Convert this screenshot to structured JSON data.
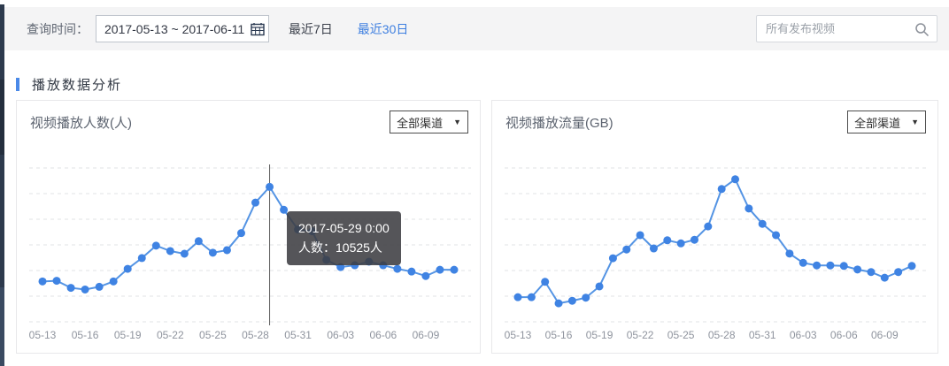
{
  "topbar": {
    "query_label": "查询时间：",
    "date_range": "2017-05-13 ~ 2017-06-11",
    "last7_label": "最近7日",
    "last30_label": "最近30日",
    "search_placeholder": "所有发布视频"
  },
  "section": {
    "title": "播放数据分析"
  },
  "colors": {
    "accent_blue": "#4a89e8",
    "link_blue": "#3e7fe0",
    "line_stroke": "#5494e4",
    "dot_fill": "#3f83e3",
    "grid_line": "#e1e3e6",
    "crosshair": "#5d5d5d",
    "tick_text": "#8f949e",
    "sidebar_dark": "#2d3a4d",
    "topbar_bg": "#f4f4f5"
  },
  "chart_data": [
    {
      "type": "line",
      "title": "视频播放人数(人)",
      "unit": "人",
      "channel_select_value": "全部渠道",
      "x": [
        "2017-05-13",
        "2017-05-14",
        "2017-05-15",
        "2017-05-16",
        "2017-05-17",
        "2017-05-18",
        "2017-05-19",
        "2017-05-20",
        "2017-05-21",
        "2017-05-22",
        "2017-05-23",
        "2017-05-24",
        "2017-05-25",
        "2017-05-26",
        "2017-05-27",
        "2017-05-28",
        "2017-05-29",
        "2017-05-30",
        "2017-05-31",
        "2017-06-01",
        "2017-06-02",
        "2017-06-03",
        "2017-06-04",
        "2017-06-05",
        "2017-06-06",
        "2017-06-07",
        "2017-06-08",
        "2017-06-09",
        "2017-06-10",
        "2017-06-11"
      ],
      "tick_labels": [
        "05-13",
        "05-16",
        "05-19",
        "05-22",
        "05-25",
        "05-28",
        "05-31",
        "06-03",
        "06-06",
        "06-09"
      ],
      "values": [
        3150,
        3200,
        2650,
        2520,
        2730,
        3150,
        4130,
        4970,
        5940,
        5520,
        5310,
        6290,
        5390,
        5590,
        6920,
        9300,
        10525,
        8740,
        7200,
        7060,
        4830,
        4270,
        4410,
        4690,
        4410,
        4130,
        3920,
        3570,
        4060,
        4060
      ],
      "ylim": [
        0,
        12000
      ],
      "grid_step_value": 2000,
      "grid_lines": 7,
      "grid_dashed": true,
      "legend": null,
      "tooltip": {
        "index": 16,
        "lines": [
          "2017-05-29 0:00",
          "人数：10525人"
        ]
      }
    },
    {
      "type": "line",
      "title": "视频播放流量(GB)",
      "unit": "GB",
      "channel_select_value": "全部渠道",
      "x": [
        "2017-05-13",
        "2017-05-14",
        "2017-05-15",
        "2017-05-16",
        "2017-05-17",
        "2017-05-18",
        "2017-05-19",
        "2017-05-20",
        "2017-05-21",
        "2017-05-22",
        "2017-05-23",
        "2017-05-24",
        "2017-05-25",
        "2017-05-26",
        "2017-05-27",
        "2017-05-28",
        "2017-05-29",
        "2017-05-30",
        "2017-05-31",
        "2017-06-01",
        "2017-06-02",
        "2017-06-03",
        "2017-06-04",
        "2017-06-05",
        "2017-06-06",
        "2017-06-07",
        "2017-06-08",
        "2017-06-09",
        "2017-06-10",
        "2017-06-11"
      ],
      "tick_labels": [
        "05-13",
        "05-16",
        "05-19",
        "05-22",
        "05-25",
        "05-28",
        "05-31",
        "06-03",
        "06-06",
        "06-09"
      ],
      "values": [
        48,
        48,
        78,
        36,
        41,
        47,
        69,
        124,
        141,
        169,
        143,
        159,
        153,
        160,
        186,
        259,
        278,
        221,
        191,
        169,
        133,
        115,
        110,
        110,
        109,
        102,
        97,
        86,
        97,
        109
      ],
      "ylim": [
        0,
        300
      ],
      "grid_step_value": 50,
      "grid_lines": 7,
      "grid_dashed": true,
      "legend": null,
      "tooltip": null
    }
  ]
}
